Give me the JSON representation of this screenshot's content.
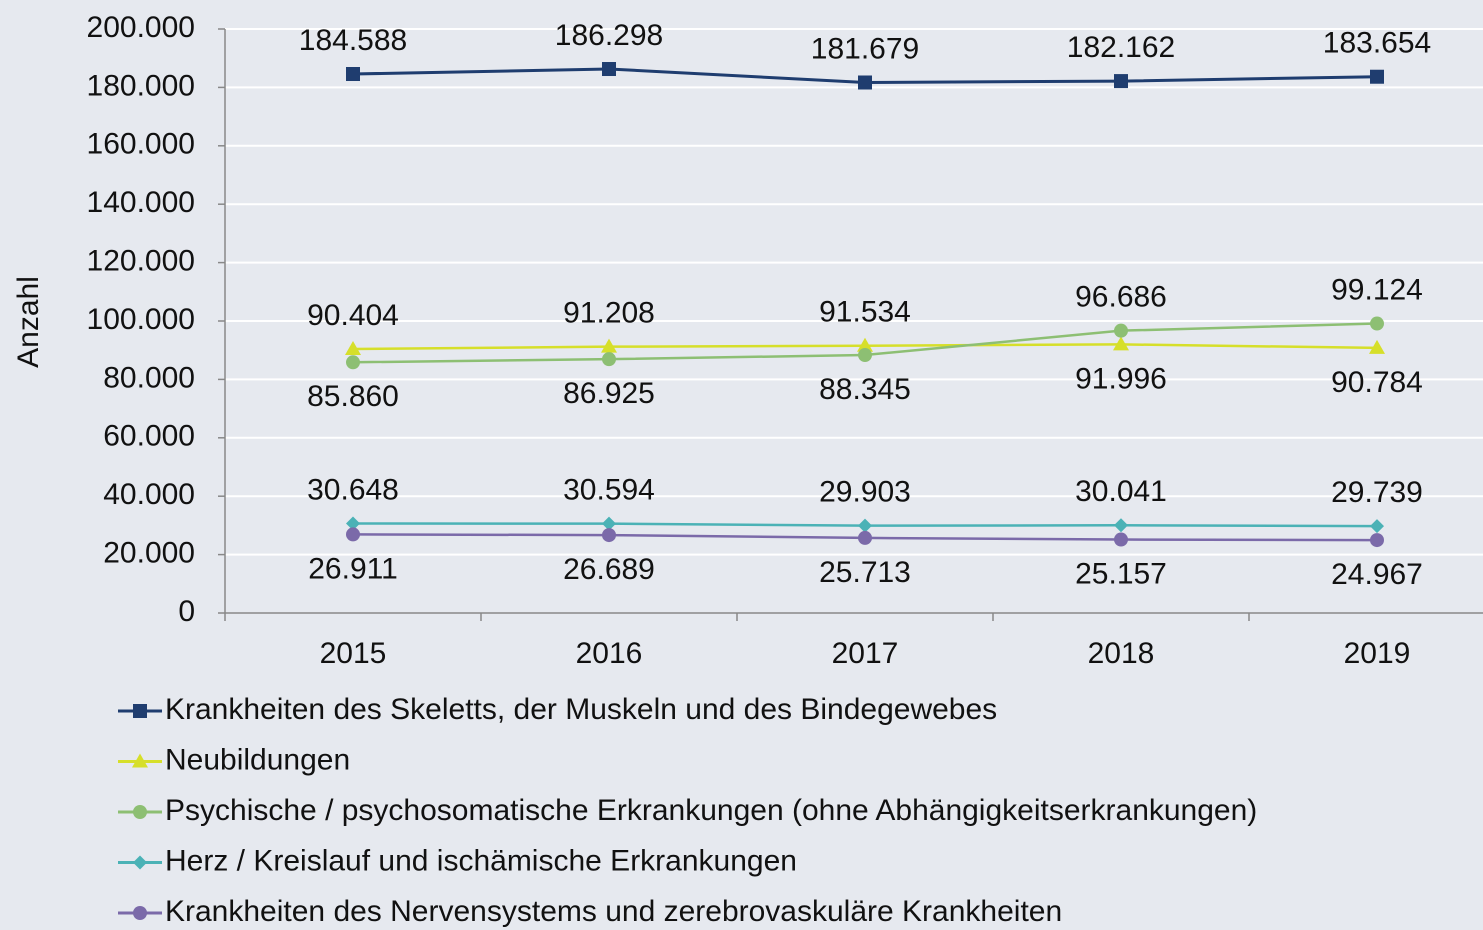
{
  "chart_data": {
    "type": "line",
    "categories": [
      "2015",
      "2016",
      "2017",
      "2018",
      "2019"
    ],
    "y_label": "Anzahl",
    "ylim": [
      0,
      200000
    ],
    "yticks": [
      0,
      {
        "value": 20000,
        "label": "20.000"
      },
      {
        "value": 40000,
        "label": "40.000"
      },
      {
        "value": 60000,
        "label": "60.000"
      },
      {
        "value": 80000,
        "label": "80.000"
      },
      {
        "value": 100000,
        "label": "100.000"
      },
      {
        "value": 120000,
        "label": "120.000"
      },
      {
        "value": 140000,
        "label": "140.000"
      },
      {
        "value": 160000,
        "label": "160.000"
      },
      {
        "value": 180000,
        "label": "180.000"
      },
      {
        "value": 200000,
        "label": "200.000"
      }
    ],
    "grid": true,
    "series": [
      {
        "name": "Krankheiten des Skeletts, der Muskeln und des Bindegewebes",
        "color": "#1f3d6f",
        "marker": "square",
        "values": [
          184588,
          186298,
          181679,
          182162,
          183654
        ],
        "value_labels": [
          "184.588",
          "186.298",
          "181.679",
          "182.162",
          "183.654"
        ]
      },
      {
        "name": "Neubildungen",
        "color": "#d6df2a",
        "marker": "triangle",
        "values": [
          90404,
          91208,
          91534,
          91996,
          90784
        ],
        "value_labels": [
          "90.404",
          "91.208",
          "91.534",
          "91.996",
          "90.784"
        ]
      },
      {
        "name": "Psychische / psychosomatische Erkrankungen (ohne Abhängigkeitserkrankungen)",
        "color": "#8dbf73",
        "marker": "circle",
        "values": [
          85860,
          86925,
          88345,
          96686,
          99124
        ],
        "value_labels": [
          "85.860",
          "86.925",
          "88.345",
          "96.686",
          "99.124"
        ]
      },
      {
        "name": "Herz / Kreislauf und ischämische Erkrankungen",
        "color": "#4bb2b6",
        "marker": "diamond",
        "values": [
          30648,
          30594,
          29903,
          30041,
          29739
        ],
        "value_labels": [
          "30.648",
          "30.594",
          "29.903",
          "30.041",
          "29.739"
        ]
      },
      {
        "name": "Krankheiten des Nervensystems und zerebrovaskuläre Krankheiten",
        "color": "#7b6aa9",
        "marker": "circle",
        "values": [
          26911,
          26689,
          25713,
          25157,
          24967
        ],
        "value_labels": [
          "26.911",
          "26.689",
          "25.713",
          "25.157",
          "24.967"
        ]
      }
    ]
  }
}
